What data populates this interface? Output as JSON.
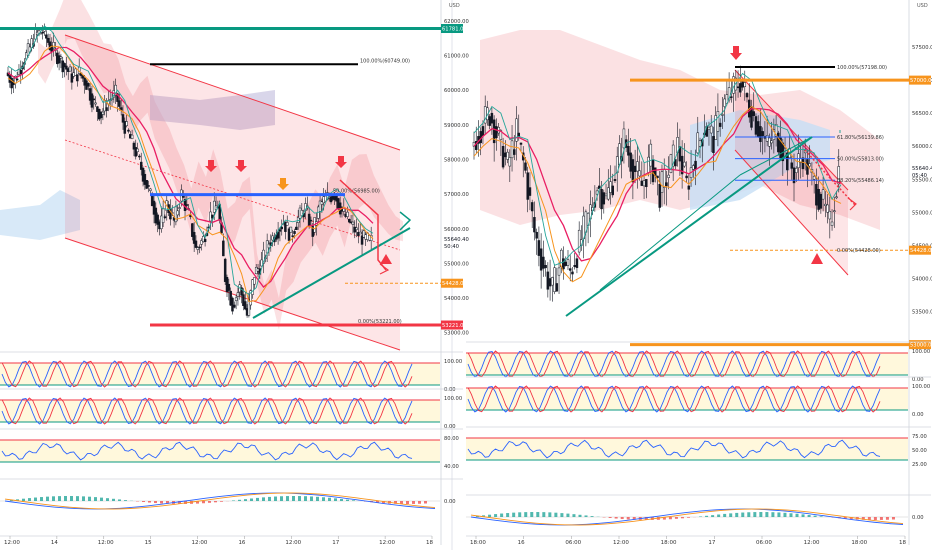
{
  "chart_data": [
    {
      "type": "line",
      "name": "left-price-chart",
      "currency": "USD",
      "ylim": [
        52500,
        62200
      ],
      "price_axis_ticks": [
        53000,
        54000,
        55000,
        56000,
        57000,
        58000,
        59000,
        60000,
        61000,
        62000
      ],
      "price_axis_tick_labels": [
        "53000.00",
        "54000.00",
        "55000.00",
        "56000.00",
        "57000.00",
        "58000.00",
        "59000.00",
        "60000.00",
        "61000.00",
        "62000.00"
      ],
      "time_ticks": [
        "12:00",
        "14",
        "12:00",
        "15",
        "12:00",
        "16",
        "12:00",
        "17",
        "12:00",
        "18"
      ],
      "highlighted_levels": [
        {
          "label": "61781.00",
          "value": 61781,
          "color": "#089981"
        },
        {
          "label": "54428.00",
          "value": 54428,
          "color": "#f7941d"
        },
        {
          "label": "53221.00",
          "value": 53221,
          "color": "#f23645"
        }
      ],
      "last_price_label": "55640.40",
      "countdown_label": "50:40",
      "fib_labels": [
        {
          "text": "100.00%(60749.00)",
          "value": 60749
        },
        {
          "text": "50.00%(56985.00)",
          "value": 56985
        },
        {
          "text": "0.00%(53221.00)",
          "value": 53221
        }
      ],
      "price_series": [
        60500,
        60200,
        60700,
        61100,
        61600,
        61700,
        61300,
        61000,
        60700,
        60400,
        60500,
        60200,
        59600,
        59300,
        59700,
        59900,
        59100,
        58600,
        58100,
        57400,
        56800,
        56000,
        56700,
        56200,
        57000,
        56400,
        55400,
        55700,
        56400,
        56700,
        54600,
        53800,
        54300,
        53500,
        54700,
        55000,
        55600,
        55900,
        56200,
        55800,
        56300,
        56600,
        55900,
        56700,
        56900,
        57000,
        56500,
        56200,
        55900,
        55700,
        55640
      ]
    },
    {
      "type": "line",
      "name": "right-price-chart",
      "currency": "USD",
      "ylim": [
        53100,
        58000
      ],
      "price_axis_ticks": [
        53500,
        54000,
        54500,
        55000,
        55500,
        56000,
        56500,
        57000,
        57500
      ],
      "price_axis_tick_labels": [
        "53500.00",
        "54000.00",
        "54500.00",
        "55000.00",
        "55500.00",
        "56000.00",
        "56500.00",
        "57000.00",
        "57500.00"
      ],
      "time_ticks": [
        "18:00",
        "16",
        "06:00",
        "12:00",
        "18:00",
        "17",
        "06:00",
        "12:00",
        "18:00",
        "18"
      ],
      "highlighted_levels": [
        {
          "label": "57000.00",
          "value": 57000,
          "color": "#f7941d"
        },
        {
          "label": "54428.00",
          "value": 54428,
          "color": "#f7941d"
        },
        {
          "label": "53000.00",
          "value": 53000,
          "color": "#f7941d"
        }
      ],
      "last_price_label": "55640.40",
      "countdown_label": "05:40",
      "fib_labels": [
        {
          "text": "100.00%(57198.00)",
          "value": 57198
        },
        {
          "text": "61.80%(56139.86)",
          "value": 56139.86
        },
        {
          "text": "50.00%(55813.00)",
          "value": 55813
        },
        {
          "text": "38.20%(55486.14)",
          "value": 55486.14
        },
        {
          "text": "0.00%(54428.00)",
          "value": 54428
        }
      ],
      "price_series": [
        56000,
        56300,
        56500,
        56100,
        55700,
        56200,
        55600,
        54700,
        54200,
        53800,
        54300,
        54100,
        54500,
        54900,
        55400,
        55200,
        55600,
        56100,
        55700,
        55400,
        55800,
        55300,
        55600,
        56000,
        55400,
        55900,
        56300,
        56100,
        56600,
        56800,
        57000,
        56600,
        56300,
        56000,
        56200,
        55900,
        55600,
        55900,
        55500,
        55200,
        54800,
        55640
      ]
    }
  ],
  "indicators": {
    "left": [
      {
        "name": "Stoch",
        "axis": [
          "100.00",
          "0.00"
        ]
      },
      {
        "name": "StochRSI",
        "axis": [
          "100.00",
          "0.00"
        ]
      },
      {
        "name": "RSI",
        "axis": [
          "80.00",
          "40.00"
        ]
      },
      {
        "name": "MACD",
        "axis": [
          "0.00"
        ]
      }
    ],
    "right": [
      {
        "name": "Stoch",
        "axis": [
          "100.00",
          "0.00"
        ]
      },
      {
        "name": "StochRSI",
        "axis": [
          "100.00",
          "0.00"
        ]
      },
      {
        "name": "RSI",
        "axis": [
          "75.00",
          "50.00",
          "25.00"
        ]
      },
      {
        "name": "MACD",
        "axis": [
          "0.00"
        ]
      }
    ]
  },
  "colors": {
    "channel": "#f23645",
    "trendline": "#089981",
    "fib_blue": "#2962ff",
    "cloud_red": "#f8c9cc",
    "cloud_blue": "#c7dff5",
    "ma_pink": "#e91e63",
    "ma_orange": "#f7941d",
    "line_teal": "#26a69a"
  }
}
